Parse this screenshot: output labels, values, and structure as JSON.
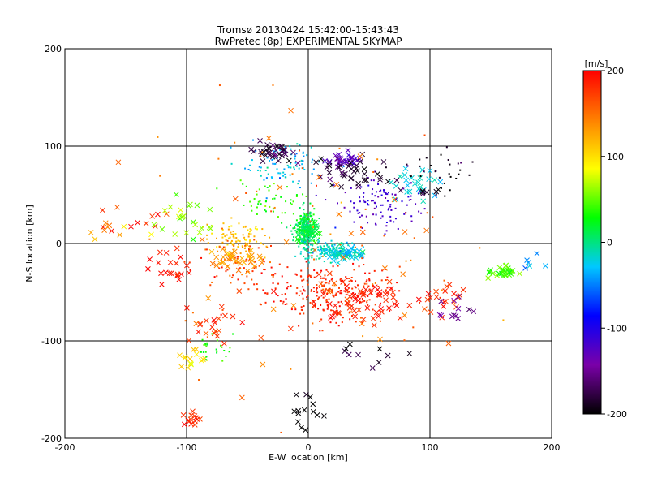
{
  "chart_data": {
    "type": "scatter",
    "title": "Tromsø 20130424 15:42:00-15:43:43",
    "subtitle": "RwPretec (8p) EXPERIMENTAL SKYMAP",
    "xlabel": "E-W location [km]",
    "ylabel": "N-S location [km]",
    "xlim": [
      -200,
      200
    ],
    "ylim": [
      -200,
      200
    ],
    "xticks": [
      -200,
      -100,
      0,
      100,
      200
    ],
    "yticks": [
      -200,
      -100,
      0,
      100,
      200
    ],
    "grid": true,
    "colorbar": {
      "label": "[m/s]",
      "range": [
        -200,
        200
      ],
      "ticks": [
        -200,
        -100,
        0,
        100,
        200
      ],
      "colormap": [
        "#000000",
        "#7a00a8",
        "#0000ff",
        "#00c8ff",
        "#00ff00",
        "#ffff00",
        "#ff8000",
        "#ff0000"
      ]
    },
    "markers": [
      "x",
      "dot"
    ],
    "clusters": [
      {
        "x": 20,
        "y": -50,
        "sx": 45,
        "sy": 25,
        "v": 185,
        "n": 260,
        "m": "dot"
      },
      {
        "x": 40,
        "y": -60,
        "sx": 40,
        "sy": 18,
        "v": 190,
        "n": 60,
        "m": "x"
      },
      {
        "x": -60,
        "y": -20,
        "sx": 30,
        "sy": 20,
        "v": 175,
        "n": 80,
        "m": "dot"
      },
      {
        "x": -110,
        "y": -30,
        "sx": 20,
        "sy": 20,
        "v": 190,
        "n": 20,
        "m": "x"
      },
      {
        "x": -95,
        "y": -180,
        "sx": 8,
        "sy": 6,
        "v": 185,
        "n": 14,
        "m": "x"
      },
      {
        "x": -80,
        "y": -80,
        "sx": 25,
        "sy": 20,
        "v": 180,
        "n": 20,
        "m": "x"
      },
      {
        "x": 110,
        "y": -55,
        "sx": 18,
        "sy": 12,
        "v": 180,
        "n": 20,
        "m": "x"
      },
      {
        "x": -140,
        "y": 30,
        "sx": 25,
        "sy": 15,
        "v": 190,
        "n": 10,
        "m": "x"
      },
      {
        "x": -60,
        "y": 5,
        "sx": 20,
        "sy": 15,
        "v": 110,
        "n": 90,
        "m": "dot"
      },
      {
        "x": -60,
        "y": -15,
        "sx": 20,
        "sy": 10,
        "v": 130,
        "n": 40,
        "m": "x"
      },
      {
        "x": -170,
        "y": 15,
        "sx": 15,
        "sy": 8,
        "v": 125,
        "n": 8,
        "m": "x"
      },
      {
        "x": -95,
        "y": -115,
        "sx": 10,
        "sy": 10,
        "v": 100,
        "n": 14,
        "m": "x"
      },
      {
        "x": -2,
        "y": 15,
        "sx": 7,
        "sy": 15,
        "v": 10,
        "n": 260,
        "m": "dot"
      },
      {
        "x": 0,
        "y": 10,
        "sx": 6,
        "sy": 10,
        "v": 15,
        "n": 30,
        "m": "x"
      },
      {
        "x": -30,
        "y": 45,
        "sx": 25,
        "sy": 15,
        "v": 40,
        "n": 50,
        "m": "dot"
      },
      {
        "x": 160,
        "y": -30,
        "sx": 8,
        "sy": 6,
        "v": 40,
        "n": 30,
        "m": "x"
      },
      {
        "x": -100,
        "y": 20,
        "sx": 25,
        "sy": 18,
        "v": 55,
        "n": 25,
        "m": "x"
      },
      {
        "x": -80,
        "y": -105,
        "sx": 15,
        "sy": 10,
        "v": 30,
        "n": 25,
        "m": "dot"
      },
      {
        "x": 20,
        "y": -8,
        "sx": 20,
        "sy": 8,
        "v": -15,
        "n": 170,
        "m": "dot"
      },
      {
        "x": 30,
        "y": -10,
        "sx": 15,
        "sy": 6,
        "v": -20,
        "n": 40,
        "m": "x"
      },
      {
        "x": -20,
        "y": 80,
        "sx": 30,
        "sy": 20,
        "v": -30,
        "n": 90,
        "m": "dot"
      },
      {
        "x": 90,
        "y": 60,
        "sx": 15,
        "sy": 15,
        "v": -20,
        "n": 25,
        "m": "x"
      },
      {
        "x": 180,
        "y": -20,
        "sx": 10,
        "sy": 8,
        "v": -40,
        "n": 6,
        "m": "x"
      },
      {
        "x": 60,
        "y": 40,
        "sx": 30,
        "sy": 20,
        "v": -120,
        "n": 110,
        "m": "dot"
      },
      {
        "x": 30,
        "y": 85,
        "sx": 12,
        "sy": 5,
        "v": -130,
        "n": 30,
        "m": "x"
      },
      {
        "x": -30,
        "y": 95,
        "sx": 15,
        "sy": 10,
        "v": -180,
        "n": 35,
        "m": "x"
      },
      {
        "x": 40,
        "y": 70,
        "sx": 25,
        "sy": 15,
        "v": -185,
        "n": 40,
        "m": "x"
      },
      {
        "x": 110,
        "y": 75,
        "sx": 25,
        "sy": 20,
        "v": -190,
        "n": 30,
        "m": "dot"
      },
      {
        "x": 100,
        "y": 55,
        "sx": 8,
        "sy": 6,
        "v": -190,
        "n": 6,
        "m": "x"
      },
      {
        "x": 120,
        "y": -70,
        "sx": 15,
        "sy": 10,
        "v": -150,
        "n": 12,
        "m": "x"
      },
      {
        "x": 0,
        "y": -170,
        "sx": 10,
        "sy": 20,
        "v": -195,
        "n": 14,
        "m": "x"
      },
      {
        "x": 50,
        "y": -110,
        "sx": 30,
        "sy": 15,
        "v": -190,
        "n": 10,
        "m": "x"
      },
      {
        "x": 0,
        "y": 0,
        "sx": 110,
        "sy": 110,
        "v": 150,
        "n": 70,
        "m": "dot"
      },
      {
        "x": 0,
        "y": 0,
        "sx": 110,
        "sy": 110,
        "v": 150,
        "n": 40,
        "m": "x"
      }
    ]
  }
}
